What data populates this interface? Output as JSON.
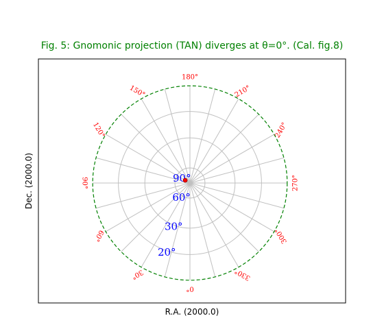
{
  "chart_data": {
    "type": "polar-grid",
    "title": "Fig. 5: Gnomonic projection (TAN) diverges at θ=0°. (Cal. fig.8)",
    "xlabel": "R.A. (2000.0)",
    "ylabel": "Dec. (2000.0)",
    "projection": "TAN",
    "ra_ticks_deg": [
      0,
      30,
      60,
      90,
      120,
      150,
      180,
      210,
      240,
      270,
      300,
      330
    ],
    "ra_labels": [
      "0°",
      "30°",
      "60°",
      "90°",
      "120°",
      "150°",
      "180°",
      "210°",
      "240°",
      "270°",
      "300°",
      "330°"
    ],
    "dec_circles_deg": [
      90,
      60,
      30,
      20
    ],
    "dec_labels": [
      "90°",
      "60°",
      "30°",
      "20°"
    ],
    "ra_gridline_step_deg": 15,
    "border_dec_deg": 15,
    "marker": {
      "ra_deg": 120,
      "dec_deg": 88
    },
    "grid": true
  },
  "colors": {
    "title": "#008000",
    "grid": "#c0c0c0",
    "border": "#008000",
    "ra_labels": "#ff0000",
    "dec_labels": "#0000ff",
    "marker": "#ff0000"
  }
}
